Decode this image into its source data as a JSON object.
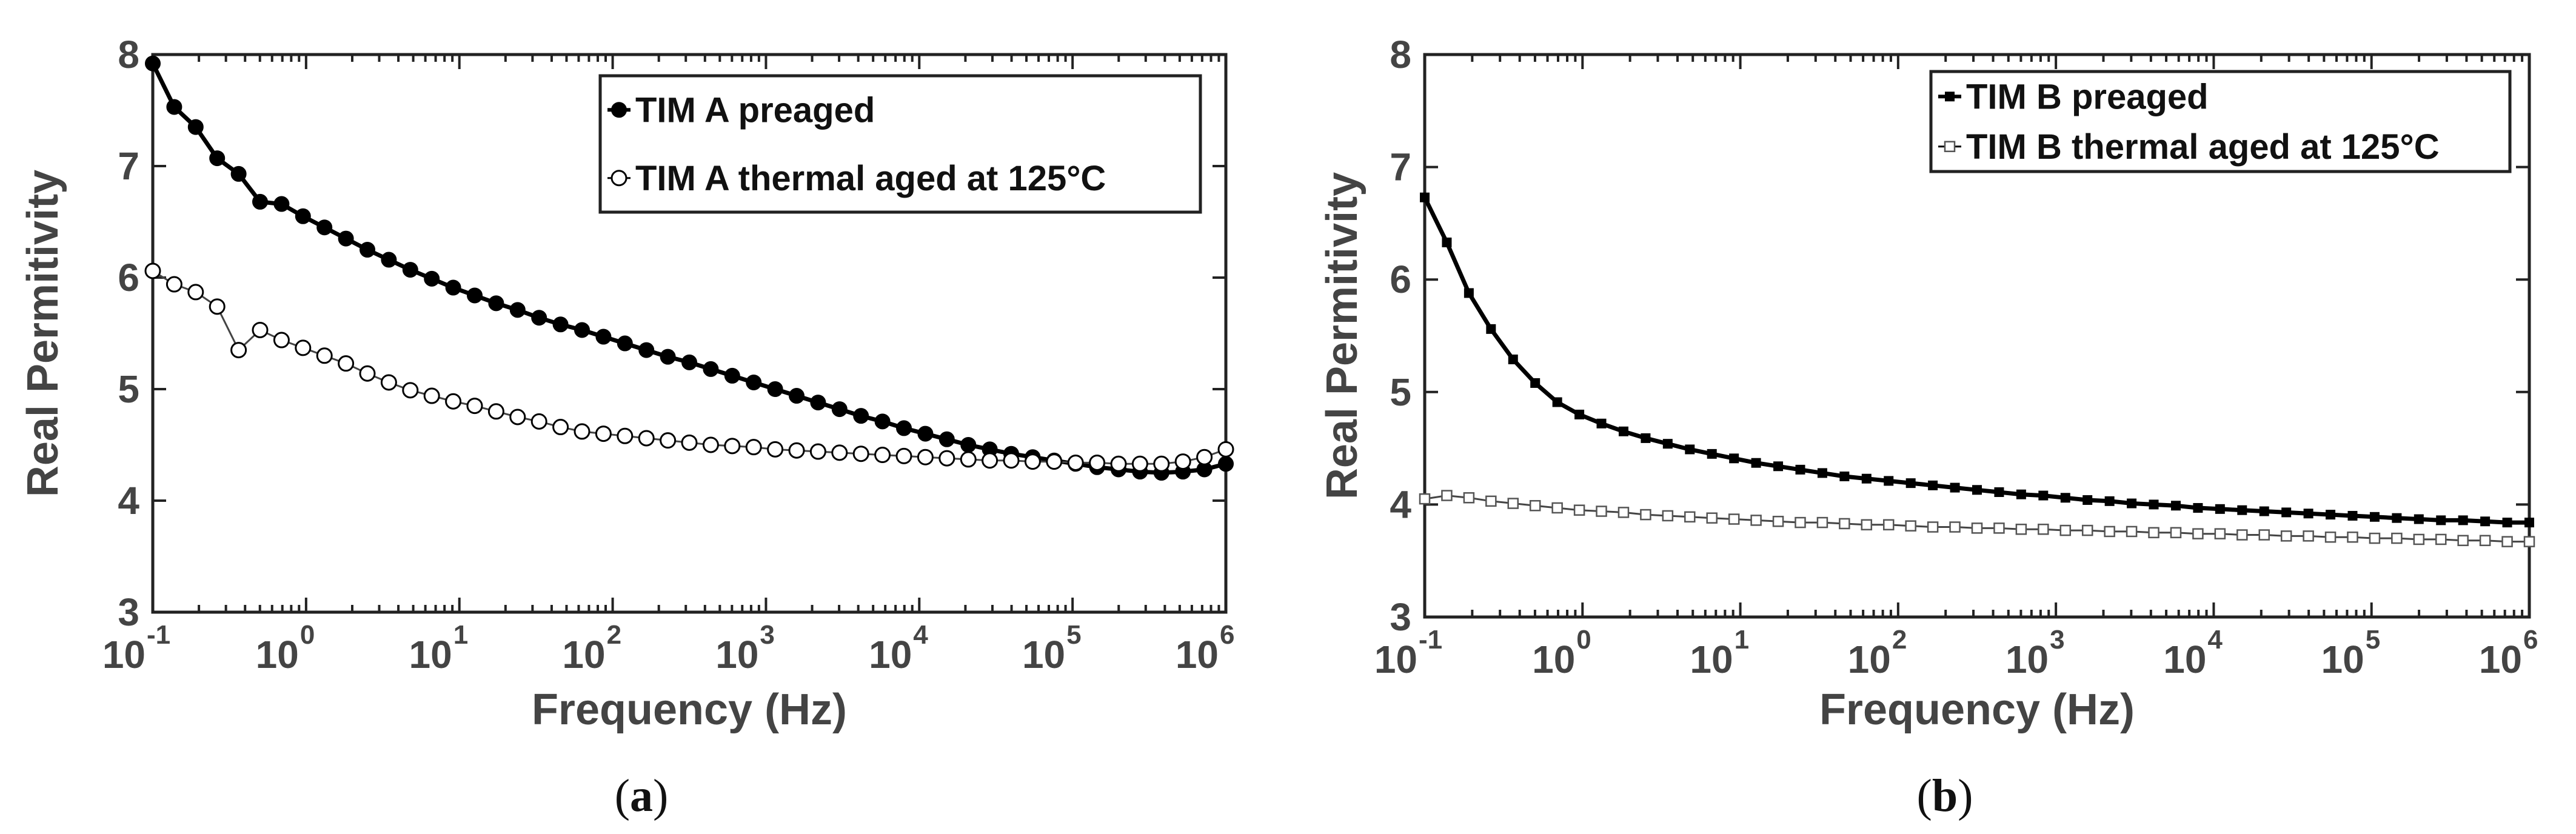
{
  "chart_data": [
    {
      "id": "a",
      "type": "line",
      "caption_letter": "a",
      "xlabel": "Frequency (Hz)",
      "ylabel": "Real Permitivity",
      "xscale": "log",
      "xlim": [
        0.1,
        1000000
      ],
      "ylim": [
        3,
        8
      ],
      "xticks": [
        {
          "base": "10",
          "exp": "-1"
        },
        {
          "base": "10",
          "exp": "0"
        },
        {
          "base": "10",
          "exp": "1"
        },
        {
          "base": "10",
          "exp": "2"
        },
        {
          "base": "10",
          "exp": "3"
        },
        {
          "base": "10",
          "exp": "4"
        },
        {
          "base": "10",
          "exp": "5"
        },
        {
          "base": "10",
          "exp": "6"
        }
      ],
      "yticks": [
        "3",
        "4",
        "5",
        "6",
        "7",
        "8"
      ],
      "legend_position": "top-right",
      "series": [
        {
          "name": "TIM A preaged",
          "marker": "filled-circle",
          "color": "#000000",
          "log10_x": [
            -1.0,
            -0.86,
            -0.72,
            -0.58,
            -0.44,
            -0.3,
            -0.16,
            -0.02,
            0.12,
            0.26,
            0.4,
            0.54,
            0.68,
            0.82,
            0.96,
            1.1,
            1.24,
            1.38,
            1.52,
            1.66,
            1.8,
            1.94,
            2.08,
            2.22,
            2.36,
            2.5,
            2.64,
            2.78,
            2.92,
            3.06,
            3.2,
            3.34,
            3.48,
            3.62,
            3.76,
            3.9,
            4.04,
            4.18,
            4.32,
            4.46,
            4.6,
            4.74,
            4.88,
            5.02,
            5.16,
            5.3,
            5.44,
            5.58,
            5.72,
            5.86,
            6.0
          ],
          "y": [
            7.92,
            7.53,
            7.35,
            7.07,
            6.93,
            6.68,
            6.66,
            6.55,
            6.45,
            6.35,
            6.25,
            6.16,
            6.07,
            5.99,
            5.91,
            5.84,
            5.77,
            5.71,
            5.64,
            5.58,
            5.53,
            5.47,
            5.41,
            5.35,
            5.29,
            5.24,
            5.18,
            5.12,
            5.06,
            5.0,
            4.94,
            4.88,
            4.82,
            4.76,
            4.71,
            4.65,
            4.6,
            4.55,
            4.5,
            4.46,
            4.42,
            4.39,
            4.36,
            4.33,
            4.3,
            4.28,
            4.26,
            4.25,
            4.26,
            4.28,
            4.33
          ]
        },
        {
          "name": "TIM A thermal aged at 125°C",
          "marker": "open-circle",
          "color": "#000000",
          "log10_x": [
            -1.0,
            -0.86,
            -0.72,
            -0.58,
            -0.44,
            -0.3,
            -0.16,
            -0.02,
            0.12,
            0.26,
            0.4,
            0.54,
            0.68,
            0.82,
            0.96,
            1.1,
            1.24,
            1.38,
            1.52,
            1.66,
            1.8,
            1.94,
            2.08,
            2.22,
            2.36,
            2.5,
            2.64,
            2.78,
            2.92,
            3.06,
            3.2,
            3.34,
            3.48,
            3.62,
            3.76,
            3.9,
            4.04,
            4.18,
            4.32,
            4.46,
            4.6,
            4.74,
            4.88,
            5.02,
            5.16,
            5.3,
            5.44,
            5.58,
            5.72,
            5.86,
            6.0
          ],
          "y": [
            6.06,
            5.94,
            5.87,
            5.74,
            5.35,
            5.53,
            5.44,
            5.37,
            5.3,
            5.23,
            5.14,
            5.06,
            4.99,
            4.94,
            4.89,
            4.85,
            4.8,
            4.75,
            4.71,
            4.66,
            4.62,
            4.6,
            4.58,
            4.56,
            4.54,
            4.52,
            4.5,
            4.49,
            4.48,
            4.46,
            4.45,
            4.44,
            4.43,
            4.42,
            4.41,
            4.4,
            4.39,
            4.38,
            4.37,
            4.36,
            4.36,
            4.35,
            4.35,
            4.34,
            4.34,
            4.33,
            4.33,
            4.33,
            4.35,
            4.39,
            4.46
          ]
        }
      ]
    },
    {
      "id": "b",
      "type": "line",
      "caption_letter": "b",
      "xlabel": "Frequency (Hz)",
      "ylabel": "Real Permitivity",
      "xscale": "log",
      "xlim": [
        0.1,
        1000000
      ],
      "ylim": [
        3,
        8
      ],
      "xticks": [
        {
          "base": "10",
          "exp": "-1"
        },
        {
          "base": "10",
          "exp": "0"
        },
        {
          "base": "10",
          "exp": "1"
        },
        {
          "base": "10",
          "exp": "2"
        },
        {
          "base": "10",
          "exp": "3"
        },
        {
          "base": "10",
          "exp": "4"
        },
        {
          "base": "10",
          "exp": "5"
        },
        {
          "base": "10",
          "exp": "6"
        }
      ],
      "yticks": [
        "3",
        "4",
        "5",
        "6",
        "7",
        "8"
      ],
      "legend_position": "top-right",
      "series": [
        {
          "name": "TIM B preaged",
          "marker": "filled-square",
          "color": "#000000",
          "log10_x": [
            -1.0,
            -0.86,
            -0.72,
            -0.58,
            -0.44,
            -0.3,
            -0.16,
            -0.02,
            0.12,
            0.26,
            0.4,
            0.54,
            0.68,
            0.82,
            0.96,
            1.1,
            1.24,
            1.38,
            1.52,
            1.66,
            1.8,
            1.94,
            2.08,
            2.22,
            2.36,
            2.5,
            2.64,
            2.78,
            2.92,
            3.06,
            3.2,
            3.34,
            3.48,
            3.62,
            3.76,
            3.9,
            4.04,
            4.18,
            4.32,
            4.46,
            4.6,
            4.74,
            4.88,
            5.02,
            5.16,
            5.3,
            5.44,
            5.58,
            5.72,
            5.86,
            6.0
          ],
          "y": [
            6.73,
            6.33,
            5.88,
            5.56,
            5.29,
            5.08,
            4.91,
            4.8,
            4.72,
            4.65,
            4.59,
            4.54,
            4.49,
            4.45,
            4.41,
            4.37,
            4.34,
            4.31,
            4.28,
            4.25,
            4.23,
            4.21,
            4.19,
            4.17,
            4.15,
            4.13,
            4.11,
            4.09,
            4.08,
            4.06,
            4.04,
            4.03,
            4.01,
            4.0,
            3.99,
            3.97,
            3.96,
            3.95,
            3.94,
            3.93,
            3.92,
            3.91,
            3.9,
            3.89,
            3.88,
            3.87,
            3.86,
            3.86,
            3.85,
            3.84,
            3.84
          ]
        },
        {
          "name": "TIM B thermal aged at 125°C",
          "marker": "open-square",
          "color": "#000000",
          "log10_x": [
            -1.0,
            -0.86,
            -0.72,
            -0.58,
            -0.44,
            -0.3,
            -0.16,
            -0.02,
            0.12,
            0.26,
            0.4,
            0.54,
            0.68,
            0.82,
            0.96,
            1.1,
            1.24,
            1.38,
            1.52,
            1.66,
            1.8,
            1.94,
            2.08,
            2.22,
            2.36,
            2.5,
            2.64,
            2.78,
            2.92,
            3.06,
            3.2,
            3.34,
            3.48,
            3.62,
            3.76,
            3.9,
            4.04,
            4.18,
            4.32,
            4.46,
            4.6,
            4.74,
            4.88,
            5.02,
            5.16,
            5.3,
            5.44,
            5.58,
            5.72,
            5.86,
            6.0
          ],
          "y": [
            4.05,
            4.08,
            4.06,
            4.03,
            4.01,
            3.99,
            3.97,
            3.95,
            3.94,
            3.93,
            3.91,
            3.9,
            3.89,
            3.88,
            3.87,
            3.86,
            3.85,
            3.84,
            3.84,
            3.83,
            3.82,
            3.82,
            3.81,
            3.8,
            3.8,
            3.79,
            3.79,
            3.78,
            3.78,
            3.77,
            3.77,
            3.76,
            3.76,
            3.75,
            3.75,
            3.74,
            3.74,
            3.73,
            3.73,
            3.72,
            3.72,
            3.71,
            3.71,
            3.7,
            3.7,
            3.69,
            3.69,
            3.68,
            3.68,
            3.67,
            3.67
          ]
        }
      ]
    }
  ]
}
